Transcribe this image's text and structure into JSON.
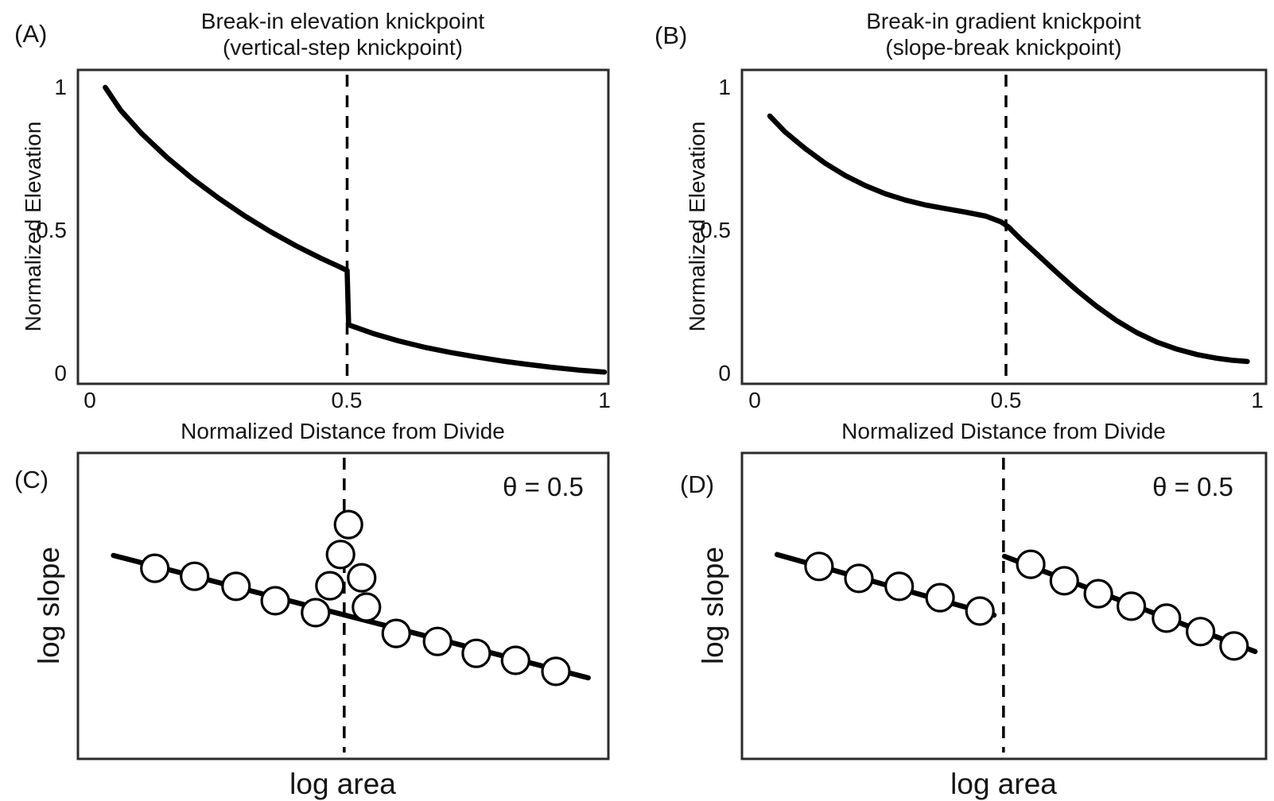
{
  "figure": {
    "background": "#ffffff",
    "line_color": "#000000",
    "box_color": "#2b2b2b",
    "marker_fill": "#ffffff"
  },
  "chart_data": [
    {
      "panel": "A",
      "letter": "(A)",
      "type": "line",
      "title": "Break-in elevation knickpoint",
      "subtitle": "(vertical-step knickpoint)",
      "xlabel": "Normalized Distance from Divide",
      "ylabel": "Normalized Elevation",
      "xlim": [
        0,
        1
      ],
      "ylim": [
        0,
        1
      ],
      "xticks": [
        0,
        0.5,
        1
      ],
      "xtick_labels": [
        "0",
        "0.5",
        "1"
      ],
      "yticks": [
        1,
        0.5,
        0
      ],
      "ytick_labels": [
        "1",
        "0.5",
        "0"
      ],
      "grid": false,
      "knickpoint_x": 0.5,
      "knickpoint_style": "vertical-step",
      "curve": [
        [
          0.03,
          1.0
        ],
        [
          0.06,
          0.92
        ],
        [
          0.1,
          0.84
        ],
        [
          0.15,
          0.755
        ],
        [
          0.2,
          0.68
        ],
        [
          0.25,
          0.613
        ],
        [
          0.3,
          0.552
        ],
        [
          0.35,
          0.497
        ],
        [
          0.4,
          0.447
        ],
        [
          0.45,
          0.402
        ],
        [
          0.485,
          0.373
        ],
        [
          0.5,
          0.36
        ],
        [
          0.503,
          0.17
        ],
        [
          0.55,
          0.14
        ],
        [
          0.6,
          0.114
        ],
        [
          0.65,
          0.092
        ],
        [
          0.7,
          0.074
        ],
        [
          0.75,
          0.058
        ],
        [
          0.8,
          0.044
        ],
        [
          0.85,
          0.032
        ],
        [
          0.9,
          0.021
        ],
        [
          0.95,
          0.012
        ],
        [
          1.0,
          0.005
        ]
      ]
    },
    {
      "panel": "B",
      "letter": "(B)",
      "type": "line",
      "title": "Break-in gradient knickpoint",
      "subtitle": "(slope-break knickpoint)",
      "xlabel": "Normalized Distance from Divide",
      "ylabel": "Normalized Elevation",
      "xlim": [
        0,
        1
      ],
      "ylim": [
        0,
        1
      ],
      "xticks": [
        0,
        0.5,
        1
      ],
      "xtick_labels": [
        "0",
        "0.5",
        "1"
      ],
      "yticks": [
        1,
        0.5,
        0
      ],
      "ytick_labels": [
        "1",
        "0.5",
        "0"
      ],
      "grid": false,
      "knickpoint_x": 0.5,
      "knickpoint_style": "slope-break",
      "curve": [
        [
          0.03,
          0.9
        ],
        [
          0.06,
          0.845
        ],
        [
          0.1,
          0.787
        ],
        [
          0.14,
          0.735
        ],
        [
          0.18,
          0.692
        ],
        [
          0.22,
          0.657
        ],
        [
          0.26,
          0.628
        ],
        [
          0.3,
          0.606
        ],
        [
          0.34,
          0.589
        ],
        [
          0.38,
          0.576
        ],
        [
          0.42,
          0.564
        ],
        [
          0.46,
          0.55
        ],
        [
          0.49,
          0.53
        ],
        [
          0.505,
          0.512
        ],
        [
          0.53,
          0.468
        ],
        [
          0.56,
          0.42
        ],
        [
          0.6,
          0.355
        ],
        [
          0.64,
          0.292
        ],
        [
          0.68,
          0.235
        ],
        [
          0.72,
          0.185
        ],
        [
          0.76,
          0.143
        ],
        [
          0.8,
          0.11
        ],
        [
          0.84,
          0.085
        ],
        [
          0.88,
          0.066
        ],
        [
          0.92,
          0.053
        ],
        [
          0.95,
          0.046
        ],
        [
          0.98,
          0.042
        ]
      ]
    },
    {
      "panel": "C",
      "letter": "(C)",
      "type": "scatter",
      "xlabel": "log area",
      "ylabel": "log slope",
      "theta_label": "θ = 0.5",
      "axis_units": "unlabeled log-log schematic, coordinates are axis fractions (x from left, y from bottom)",
      "knickpoint_x_frac": 0.502,
      "lines": [
        [
          [
            0.067,
            0.665
          ],
          [
            0.962,
            0.265
          ]
        ]
      ],
      "points": [
        [
          0.145,
          0.623
        ],
        [
          0.22,
          0.597
        ],
        [
          0.298,
          0.564
        ],
        [
          0.372,
          0.517
        ],
        [
          0.448,
          0.478
        ],
        [
          0.475,
          0.566
        ],
        [
          0.495,
          0.668
        ],
        [
          0.51,
          0.766
        ],
        [
          0.535,
          0.592
        ],
        [
          0.544,
          0.496
        ],
        [
          0.6,
          0.41
        ],
        [
          0.678,
          0.384
        ],
        [
          0.751,
          0.345
        ],
        [
          0.825,
          0.322
        ],
        [
          0.901,
          0.286
        ]
      ]
    },
    {
      "panel": "D",
      "letter": "(D)",
      "type": "scatter",
      "xlabel": "log area",
      "ylabel": "log slope",
      "theta_label": "θ = 0.5",
      "axis_units": "unlabeled log-log schematic, coordinates are axis fractions (x from left, y from bottom)",
      "knickpoint_x_frac": 0.499,
      "lines": [
        [
          [
            0.067,
            0.668
          ],
          [
            0.481,
            0.47
          ]
        ],
        [
          [
            0.501,
            0.662
          ],
          [
            0.979,
            0.351
          ]
        ]
      ],
      "points": [
        [
          0.147,
          0.629
        ],
        [
          0.223,
          0.59
        ],
        [
          0.3,
          0.564
        ],
        [
          0.378,
          0.527
        ],
        [
          0.454,
          0.483
        ],
        [
          0.551,
          0.636
        ],
        [
          0.615,
          0.582
        ],
        [
          0.68,
          0.54
        ],
        [
          0.743,
          0.499
        ],
        [
          0.81,
          0.46
        ],
        [
          0.875,
          0.416
        ],
        [
          0.939,
          0.369
        ]
      ]
    }
  ]
}
